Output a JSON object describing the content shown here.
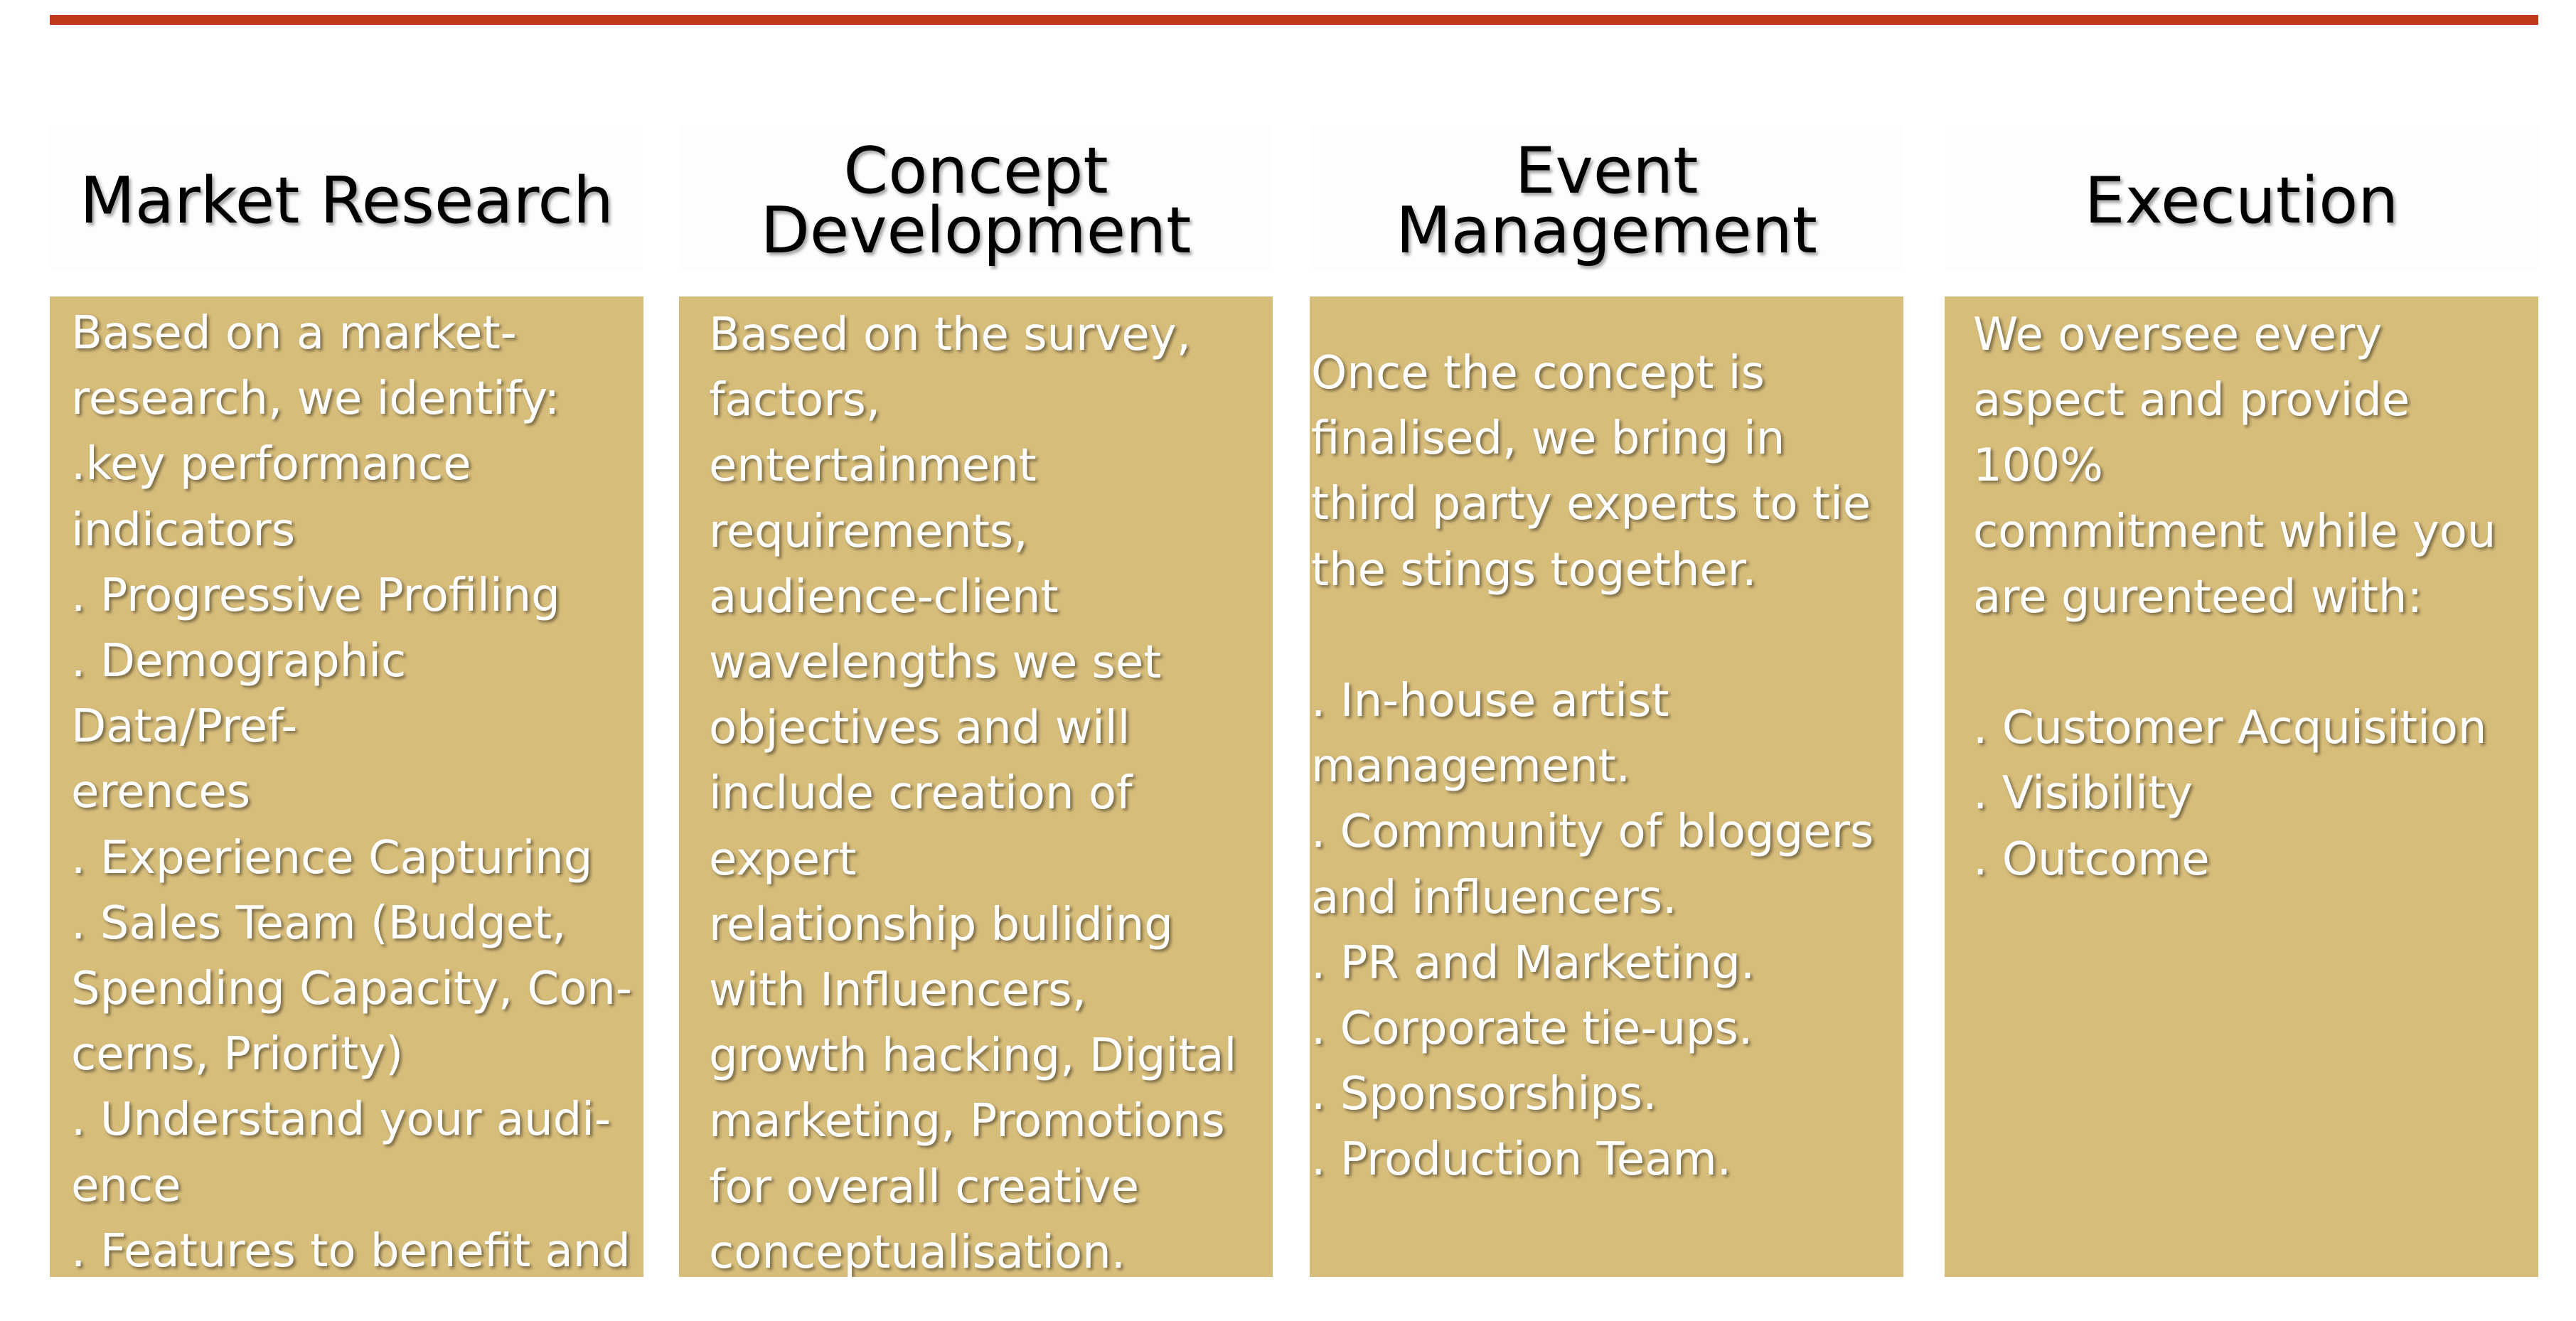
{
  "colors": {
    "accent_rule": "#c23a1e",
    "panel_fill": "#d7bd7a",
    "header_fill": "#fdfdfd",
    "title_text": "#000000",
    "body_text": "#ffffff"
  },
  "columns": [
    {
      "title": "Market Research",
      "body": "Based on a market-\nresearch, we identify:\n.key performance\nindicators\n. Progressive Profiling\n. Demographic Data/Pref-\nerences\n. Experience Capturing\n. Sales Team (Budget,\nSpending Capacity, Con-\ncerns, Priority)\n. Understand your audi-\nence\n. Features to benefit and\nattract customers"
    },
    {
      "title": "Concept\nDevelopment",
      "body": "Based on the survey,\nfactors,\nentertainment\nrequirements,\naudience-client\nwavelengths we set\nobjectives and will\ninclude creation of\nexpert\nrelationship buliding\nwith Influencers,\ngrowth hacking, Digital\nmarketing, Promotions\nfor overall creative\nconceptualisation."
    },
    {
      "title": "Event\nManagement",
      "body": "Once the concept is\nfinalised, we bring in\nthird party experts to tie\nthe stings together.\n\n. In-house artist\nmanagement.\n. Community of bloggers\nand influencers.\n. PR and Marketing.\n. Corporate tie-ups.\n. Sponsorships.\n. Production Team."
    },
    {
      "title": "Execution",
      "body": "We oversee every\naspect and provide\n100%\ncommitment while you\nare gurenteed with:\n\n. Customer Acquisition\n. Visibility\n. Outcome"
    }
  ]
}
